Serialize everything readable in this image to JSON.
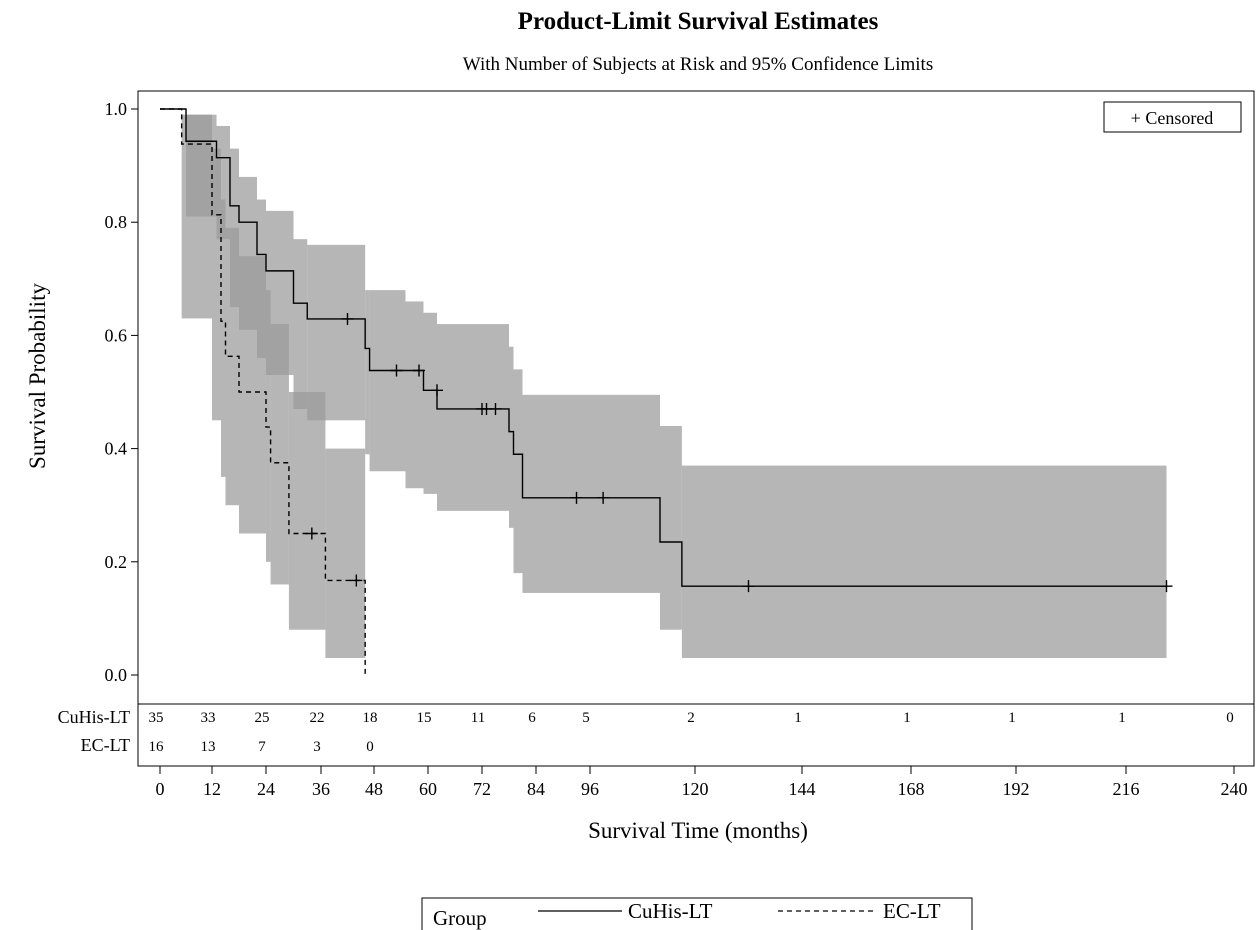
{
  "chart_data": {
    "type": "line",
    "title": "Product-Limit Survival Estimates",
    "subtitle": "With Number of Subjects at Risk and 95% Confidence Limits",
    "xlabel": "Survival Time (months)",
    "ylabel": "Survival Probability",
    "xlim": [
      0,
      240
    ],
    "ylim": [
      0,
      1
    ],
    "x_ticks": [
      0,
      12,
      24,
      36,
      48,
      60,
      72,
      84,
      96,
      120,
      144,
      168,
      192,
      216,
      240
    ],
    "y_ticks": [
      "0.0",
      "0.2",
      "0.4",
      "0.6",
      "0.8",
      "1.0"
    ],
    "censored_legend": "+ Censored",
    "legend_title": "Group",
    "series": [
      {
        "name": "CuHis-LT",
        "line_style": "solid",
        "color": "#000000",
        "steps": [
          [
            0,
            1.0
          ],
          [
            6,
            0.943
          ],
          [
            13,
            0.914
          ],
          [
            16,
            0.829
          ],
          [
            18,
            0.8
          ],
          [
            22,
            0.743
          ],
          [
            24,
            0.714
          ],
          [
            30,
            0.657
          ],
          [
            33,
            0.629
          ],
          [
            46,
            0.577
          ],
          [
            47,
            0.538
          ],
          [
            59,
            0.503
          ],
          [
            62,
            0.47
          ],
          [
            78,
            0.43
          ],
          [
            79,
            0.39
          ],
          [
            81,
            0.313
          ],
          [
            112,
            0.235
          ],
          [
            117,
            0.157
          ],
          [
            225,
            0.157
          ]
        ],
        "ci_steps": [
          [
            0,
            1.0,
            1.0
          ],
          [
            6,
            0.81,
            0.99
          ],
          [
            13,
            0.77,
            0.97
          ],
          [
            16,
            0.65,
            0.93
          ],
          [
            18,
            0.61,
            0.88
          ],
          [
            22,
            0.56,
            0.84
          ],
          [
            24,
            0.53,
            0.82
          ],
          [
            30,
            0.47,
            0.77
          ],
          [
            33,
            0.45,
            0.76
          ],
          [
            46,
            0.39,
            0.68
          ],
          [
            47,
            0.36,
            0.68
          ],
          [
            55,
            0.33,
            0.66
          ],
          [
            59,
            0.32,
            0.64
          ],
          [
            62,
            0.29,
            0.62
          ],
          [
            78,
            0.26,
            0.58
          ],
          [
            79,
            0.18,
            0.54
          ],
          [
            81,
            0.145,
            0.495
          ],
          [
            112,
            0.08,
            0.44
          ],
          [
            117,
            0.03,
            0.37
          ],
          [
            225,
            0.03,
            0.37
          ]
        ],
        "censored": [
          [
            42,
            0.629
          ],
          [
            53,
            0.538
          ],
          [
            58,
            0.538
          ],
          [
            62,
            0.503
          ],
          [
            72,
            0.47
          ],
          [
            73,
            0.47
          ],
          [
            75,
            0.47
          ],
          [
            93,
            0.313
          ],
          [
            99,
            0.313
          ],
          [
            132,
            0.157
          ],
          [
            225,
            0.157
          ]
        ],
        "at_risk": [
          35,
          33,
          25,
          22,
          18,
          15,
          11,
          6,
          5,
          2,
          1,
          1,
          1,
          1,
          0
        ]
      },
      {
        "name": "EC-LT",
        "line_style": "dashed",
        "color": "#000000",
        "steps": [
          [
            0,
            1.0
          ],
          [
            5,
            0.938
          ],
          [
            12,
            0.813
          ],
          [
            14,
            0.625
          ],
          [
            15,
            0.563
          ],
          [
            18,
            0.5
          ],
          [
            24,
            0.438
          ],
          [
            25,
            0.375
          ],
          [
            29,
            0.25
          ],
          [
            37,
            0.167
          ],
          [
            46,
            0.0
          ]
        ],
        "ci_steps": [
          [
            0,
            1.0,
            1.0
          ],
          [
            5,
            0.63,
            0.99
          ],
          [
            12,
            0.45,
            0.93
          ],
          [
            14,
            0.35,
            0.84
          ],
          [
            15,
            0.3,
            0.79
          ],
          [
            18,
            0.25,
            0.74
          ],
          [
            24,
            0.2,
            0.68
          ],
          [
            25,
            0.16,
            0.62
          ],
          [
            29,
            0.08,
            0.5
          ],
          [
            37,
            0.03,
            0.4
          ],
          [
            46,
            0.03,
            0.4
          ]
        ],
        "censored": [
          [
            34,
            0.25
          ],
          [
            44,
            0.167
          ]
        ],
        "at_risk": [
          16,
          13,
          7,
          3,
          0
        ]
      }
    ],
    "at_risk_times": [
      0,
      12,
      24,
      36,
      48,
      60,
      72,
      84,
      96,
      120,
      144,
      168,
      192,
      216,
      240
    ]
  },
  "colors": {
    "band": "#9a9a9a",
    "band_overlap": "#5a5a5a",
    "line": "#000000"
  }
}
